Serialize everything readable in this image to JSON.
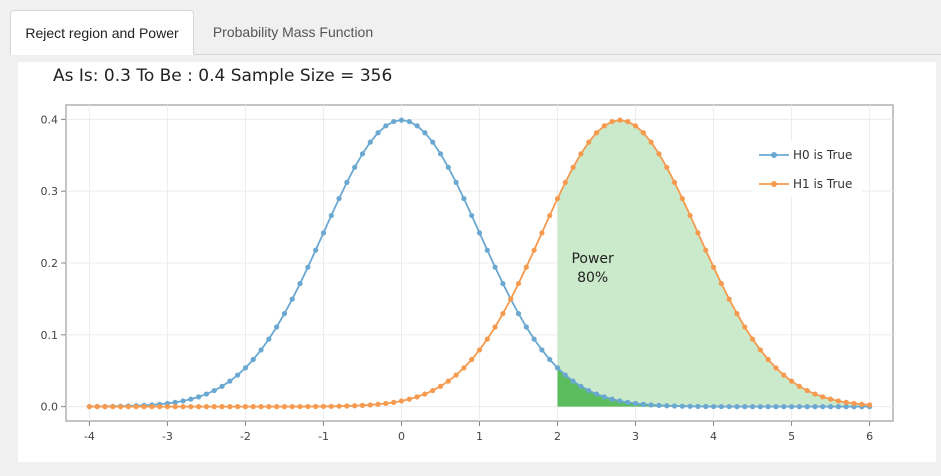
{
  "tabs": [
    {
      "label": "Reject region and Power",
      "active": true
    },
    {
      "label": "Probability Mass Function",
      "active": false
    }
  ],
  "chart_data": {
    "type": "line",
    "title": "As Is: 0.3 To Be : 0.4 Sample Size = 356",
    "xlabel": "",
    "ylabel": "",
    "xlim": [
      -4.3,
      6.3
    ],
    "ylim": [
      -0.02,
      0.42
    ],
    "x_ticks": [
      -4,
      -3,
      -2,
      -1,
      0,
      1,
      2,
      3,
      4,
      5,
      6
    ],
    "y_ticks": [
      0.0,
      0.1,
      0.2,
      0.3,
      0.4
    ],
    "y_tick_labels": [
      "0.0",
      "0.1",
      "0.2",
      "0.3",
      "0.4"
    ],
    "grid": true,
    "legend_position": "top-right",
    "series": [
      {
        "name": "H0 is True",
        "color": "#6aa8d2",
        "mean": 0.0,
        "sd": 1.0,
        "x_start": -4,
        "x_end": 6,
        "step": 0.1
      },
      {
        "name": "H1 is True",
        "color": "#f59a4e",
        "mean": 2.8,
        "sd": 1.0,
        "x_start": -4,
        "x_end": 6,
        "step": 0.1
      }
    ],
    "reject_region": {
      "x_start": 2.0,
      "x_end": 6.0,
      "power_fill": "#cbeacb",
      "alpha_fill": "#5cbd5e"
    },
    "annotation": {
      "line1": "Power",
      "line2": "80%",
      "x": 2.45,
      "y": 0.21
    }
  }
}
